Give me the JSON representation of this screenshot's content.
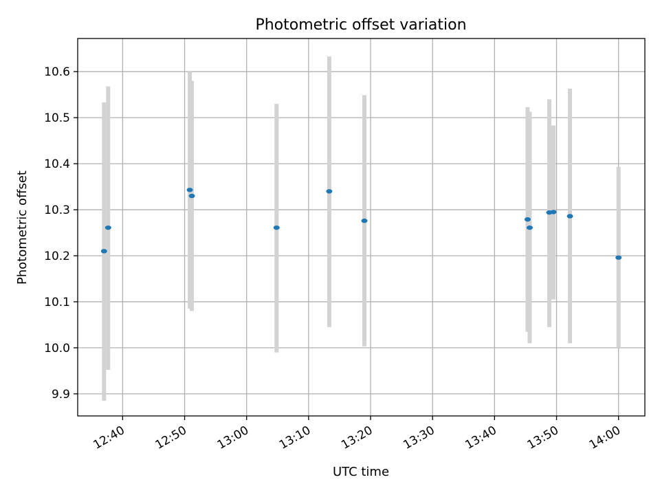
{
  "chart_data": {
    "type": "scatter",
    "title": "Photometric offset variation",
    "xlabel": "UTC time",
    "ylabel": "Photometric offset",
    "x_ticks": [
      "12:40",
      "12:50",
      "13:00",
      "13:10",
      "13:20",
      "13:30",
      "13:40",
      "13:50",
      "14:00"
    ],
    "x_tick_rotation_deg": 30,
    "xlim": [
      "12:32:45",
      "14:04:15"
    ],
    "y_ticks": [
      "9.9",
      "10.0",
      "10.1",
      "10.2",
      "10.3",
      "10.4",
      "10.5",
      "10.6"
    ],
    "ylim": [
      9.852,
      10.672
    ],
    "grid": true,
    "legend": "none",
    "colors": {
      "marker": "#1f77b4",
      "errorbar": "#d3d3d3"
    },
    "points": [
      {
        "x": "12:37:00",
        "y": 10.21,
        "ylo": 9.885,
        "yhi": 10.533
      },
      {
        "x": "12:37:40",
        "y": 10.261,
        "ylo": 9.952,
        "yhi": 10.568
      },
      {
        "x": "12:50:50",
        "y": 10.343,
        "ylo": 10.085,
        "yhi": 10.6
      },
      {
        "x": "12:51:10",
        "y": 10.33,
        "ylo": 10.08,
        "yhi": 10.58
      },
      {
        "x": "13:04:50",
        "y": 10.261,
        "ylo": 9.99,
        "yhi": 10.53
      },
      {
        "x": "13:13:20",
        "y": 10.34,
        "ylo": 10.045,
        "yhi": 10.633
      },
      {
        "x": "13:19:00",
        "y": 10.276,
        "ylo": 10.003,
        "yhi": 10.549
      },
      {
        "x": "13:45:20",
        "y": 10.279,
        "ylo": 10.035,
        "yhi": 10.523
      },
      {
        "x": "13:45:40",
        "y": 10.261,
        "ylo": 10.01,
        "yhi": 10.513
      },
      {
        "x": "13:48:50",
        "y": 10.294,
        "ylo": 10.045,
        "yhi": 10.54
      },
      {
        "x": "13:49:30",
        "y": 10.295,
        "ylo": 10.105,
        "yhi": 10.483
      },
      {
        "x": "13:52:10",
        "y": 10.286,
        "ylo": 10.01,
        "yhi": 10.563
      },
      {
        "x": "14:00:00",
        "y": 10.196,
        "ylo": 10.0,
        "yhi": 10.393
      }
    ]
  }
}
